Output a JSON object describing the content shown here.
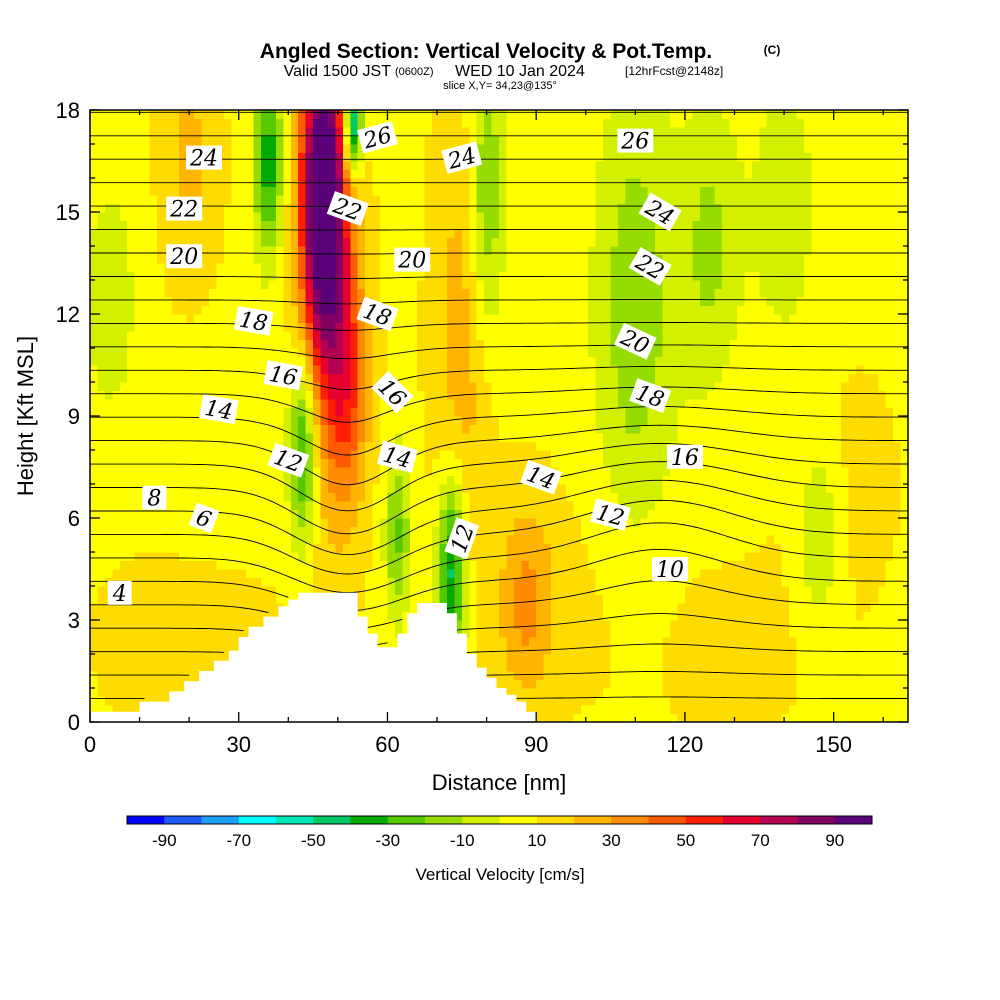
{
  "chart_data": {
    "type": "heatmap",
    "title": "Angled Section: Vertical Velocity & Pot.Temp.",
    "title_unit": "(C)",
    "subtitle_prefix": "Valid 1500 JST",
    "subtitle_utc": "(0600Z)",
    "subtitle_date": "WED 10 Jan 2024",
    "subtitle_forecast": "[12hrFcst@2148z]",
    "slice_label": "slice X,Y= 34,23@135°",
    "xlabel": "Distance [nm]",
    "ylabel": "Height [Kft MSL]",
    "xlim": [
      0,
      165
    ],
    "ylim": [
      0,
      18
    ],
    "x_ticks": [
      "0",
      "30",
      "60",
      "90",
      "120",
      "150"
    ],
    "y_ticks": [
      "0",
      "3",
      "6",
      "9",
      "12",
      "15",
      "18"
    ],
    "colorbar": {
      "label": "Vertical Velocity [cm/s]",
      "bounds": [
        -100,
        100
      ],
      "tick_labels": [
        "-90",
        "-70",
        "-50",
        "-30",
        "-10",
        "10",
        "30",
        "50",
        "70",
        "90"
      ],
      "colors": [
        "#0000ff",
        "#1e5aff",
        "#1ea0ff",
        "#00ffff",
        "#00e6b4",
        "#00c864",
        "#00aa00",
        "#55c800",
        "#96dc00",
        "#d2f000",
        "#ffff00",
        "#ffdc00",
        "#ffb400",
        "#ff8c00",
        "#ff5a00",
        "#ff1e00",
        "#e6002d",
        "#b40050",
        "#820064",
        "#5a0078"
      ]
    },
    "velocity_features": [
      {
        "x": 47,
        "y": 15.5,
        "sx": 3.0,
        "sy": 3.0,
        "v": 95
      },
      {
        "x": 48,
        "y": 13.0,
        "sx": 4.0,
        "sy": 5.0,
        "v": 30
      },
      {
        "x": 52,
        "y": 10.0,
        "sx": 3.0,
        "sy": 2.5,
        "v": 35
      },
      {
        "x": 53,
        "y": 17.5,
        "sx": 1.3,
        "sy": 1.0,
        "v": -70
      },
      {
        "x": 36,
        "y": 16.5,
        "sx": 2.0,
        "sy": 2.0,
        "v": -45
      },
      {
        "x": 43,
        "y": 8.0,
        "sx": 2.0,
        "sy": 2.0,
        "v": -45
      },
      {
        "x": 73,
        "y": 4.5,
        "sx": 2.0,
        "sy": 2.0,
        "v": -55
      },
      {
        "x": 62,
        "y": 5.5,
        "sx": 1.8,
        "sy": 1.8,
        "v": -30
      },
      {
        "x": 80,
        "y": 15.5,
        "sx": 2.5,
        "sy": 3.0,
        "v": -30
      },
      {
        "x": 88,
        "y": 3.5,
        "sx": 4.0,
        "sy": 2.0,
        "v": 25
      },
      {
        "x": 20,
        "y": 16.5,
        "sx": 4.0,
        "sy": 2.5,
        "v": 15
      },
      {
        "x": 75,
        "y": 11.0,
        "sx": 4.0,
        "sy": 5.0,
        "v": 18
      },
      {
        "x": 110,
        "y": 12.0,
        "sx": 6.0,
        "sy": 5.0,
        "v": -25
      },
      {
        "x": 125,
        "y": 14.0,
        "sx": 4.0,
        "sy": 3.0,
        "v": -20
      },
      {
        "x": 4,
        "y": 12.5,
        "sx": 4.0,
        "sy": 2.5,
        "v": -15
      },
      {
        "x": 140,
        "y": 15.0,
        "sx": 6.0,
        "sy": 4.0,
        "v": -12
      },
      {
        "x": 150,
        "y": 7.0,
        "sx": 10.0,
        "sy": 3.0,
        "v": 5
      },
      {
        "x": 105,
        "y": 4.0,
        "sx": 10.0,
        "sy": 3.0,
        "v": 5
      },
      {
        "x": 20,
        "y": 2.5,
        "sx": 15.0,
        "sy": 2.5,
        "v": 5
      },
      {
        "x": 130,
        "y": 2.0,
        "sx": 12.0,
        "sy": 2.0,
        "v": 4
      },
      {
        "x": 25,
        "y": 8.0,
        "sx": 10.0,
        "sy": 2.0,
        "v": -5
      },
      {
        "x": 147,
        "y": 5.5,
        "sx": 3.0,
        "sy": 2.0,
        "v": -20
      }
    ],
    "theta_contour_values": [
      4,
      5,
      6,
      7,
      8,
      9,
      10,
      11,
      12,
      13,
      14,
      15,
      16,
      17,
      18,
      19,
      20,
      21,
      22,
      23,
      24,
      25,
      26,
      27,
      28,
      29
    ],
    "terrain": {
      "x": [
        0,
        10,
        16,
        19,
        22,
        25,
        28,
        30,
        32,
        35,
        38,
        40,
        42,
        44,
        46,
        48,
        50,
        52,
        54,
        56,
        58,
        60,
        62,
        64,
        66,
        68,
        70,
        72,
        74,
        76,
        78,
        80,
        82,
        84,
        86,
        88,
        90,
        165
      ],
      "h": [
        0.3,
        0.6,
        0.9,
        1.2,
        1.5,
        1.8,
        2.1,
        2.5,
        2.8,
        3.1,
        3.4,
        3.6,
        3.8,
        3.8,
        3.8,
        3.8,
        3.8,
        3.8,
        3.1,
        2.6,
        2.2,
        2.2,
        2.6,
        3.2,
        3.5,
        3.5,
        3.5,
        3.2,
        2.6,
        2.0,
        1.6,
        1.3,
        1.0,
        0.8,
        0.6,
        0.3,
        0.0,
        0.0
      ]
    },
    "contour_labels": [
      {
        "text": "4",
        "x": 6,
        "y": 3.8,
        "angle": 0
      },
      {
        "text": "6",
        "x": 23,
        "y": 6.0,
        "angle": 20
      },
      {
        "text": "8",
        "x": 13,
        "y": 6.6,
        "angle": 0
      },
      {
        "text": "12",
        "x": 40,
        "y": 7.7,
        "angle": 20
      },
      {
        "text": "12",
        "x": 75,
        "y": 5.4,
        "angle": -70
      },
      {
        "text": "12",
        "x": 105,
        "y": 6.1,
        "angle": 15
      },
      {
        "text": "10",
        "x": 117,
        "y": 4.5,
        "angle": 0
      },
      {
        "text": "14",
        "x": 26,
        "y": 9.2,
        "angle": 10
      },
      {
        "text": "14",
        "x": 62,
        "y": 7.8,
        "angle": 15
      },
      {
        "text": "14",
        "x": 91,
        "y": 7.2,
        "angle": 20
      },
      {
        "text": "16",
        "x": 39,
        "y": 10.2,
        "angle": 10
      },
      {
        "text": "16",
        "x": 61,
        "y": 9.7,
        "angle": 45
      },
      {
        "text": "16",
        "x": 120,
        "y": 7.8,
        "angle": 0
      },
      {
        "text": "18",
        "x": 33,
        "y": 11.8,
        "angle": 10
      },
      {
        "text": "18",
        "x": 58,
        "y": 12.0,
        "angle": 20
      },
      {
        "text": "18",
        "x": 113,
        "y": 9.6,
        "angle": 20
      },
      {
        "text": "20",
        "x": 19,
        "y": 13.7,
        "angle": 0
      },
      {
        "text": "20",
        "x": 65,
        "y": 13.6,
        "angle": 0
      },
      {
        "text": "20",
        "x": 110,
        "y": 11.2,
        "angle": 25
      },
      {
        "text": "22",
        "x": 19,
        "y": 15.1,
        "angle": 0
      },
      {
        "text": "22",
        "x": 52,
        "y": 15.1,
        "angle": 20
      },
      {
        "text": "22",
        "x": 113,
        "y": 13.4,
        "angle": 30
      },
      {
        "text": "24",
        "x": 23,
        "y": 16.6,
        "angle": 0
      },
      {
        "text": "24",
        "x": 75,
        "y": 16.6,
        "angle": -15
      },
      {
        "text": "24",
        "x": 115,
        "y": 15.0,
        "angle": 30
      },
      {
        "text": "26",
        "x": 58,
        "y": 17.2,
        "angle": -15
      },
      {
        "text": "26",
        "x": 110,
        "y": 17.1,
        "angle": 0
      }
    ],
    "grid": false
  }
}
